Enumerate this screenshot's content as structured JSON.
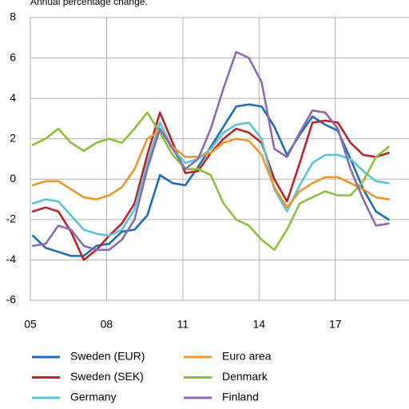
{
  "chart_data": {
    "type": "line",
    "title": "Annual percentage change.",
    "x": [
      2005.1,
      2005.6,
      2006.1,
      2006.6,
      2007.1,
      2007.6,
      2008.1,
      2008.6,
      2009.1,
      2009.6,
      2010.1,
      2010.6,
      2011.1,
      2011.6,
      2012.1,
      2012.6,
      2013.1,
      2013.6,
      2014.1,
      2014.6,
      2015.1,
      2015.6,
      2016.1,
      2016.6,
      2017.1,
      2017.6,
      2018.1,
      2018.6,
      2019.1
    ],
    "series": [
      {
        "name": "Sweden (EUR)",
        "color": "#1f6db5",
        "values": [
          -2.8,
          -3.4,
          -3.6,
          -3.8,
          -3.8,
          -3.3,
          -3.2,
          -2.6,
          -2.5,
          -1.8,
          0.2,
          -0.2,
          -0.3,
          0.6,
          1.6,
          2.6,
          3.6,
          3.7,
          3.6,
          2.6,
          1.2,
          2.2,
          3.1,
          2.7,
          2.4,
          1.0,
          -0.5,
          -1.6,
          -2.0
        ]
      },
      {
        "name": "Sweden (SEK)",
        "color": "#b8262d",
        "values": [
          -1.6,
          -1.4,
          -1.6,
          -2.6,
          -4.0,
          -3.5,
          -2.8,
          -2.2,
          -1.2,
          1.2,
          3.3,
          1.8,
          0.3,
          0.4,
          1.3,
          2.0,
          2.5,
          2.3,
          1.8,
          0.0,
          -1.1,
          0.8,
          2.8,
          2.9,
          2.8,
          1.8,
          1.2,
          1.1,
          1.3
        ]
      },
      {
        "name": "Germany",
        "color": "#5bc4d1",
        "values": [
          -1.2,
          -1.0,
          -1.1,
          -1.8,
          -2.5,
          -2.7,
          -2.8,
          -2.5,
          -1.5,
          0.8,
          2.8,
          1.5,
          0.8,
          1.0,
          1.5,
          2.3,
          2.7,
          2.8,
          2.0,
          -0.5,
          -1.6,
          -0.3,
          0.8,
          1.2,
          1.2,
          1.0,
          0.4,
          -0.1,
          -0.2
        ]
      },
      {
        "name": "Euro area",
        "color": "#f0952a",
        "values": [
          -0.3,
          -0.1,
          -0.1,
          -0.5,
          -0.9,
          -1.0,
          -0.8,
          -0.4,
          0.5,
          2.0,
          2.4,
          1.6,
          1.1,
          1.1,
          1.3,
          1.8,
          2.0,
          1.9,
          1.2,
          -0.4,
          -1.4,
          -0.6,
          -0.2,
          0.1,
          0.1,
          -0.2,
          -0.5,
          -0.9,
          -1.0
        ]
      },
      {
        "name": "Denmark",
        "color": "#8cbf3f",
        "values": [
          1.7,
          2.0,
          2.5,
          1.8,
          1.4,
          1.8,
          2.0,
          1.8,
          2.5,
          3.3,
          2.3,
          1.2,
          0.5,
          0.5,
          0.2,
          -1.2,
          -2.0,
          -2.3,
          -3.0,
          -3.5,
          -2.5,
          -1.2,
          -0.9,
          -0.6,
          -0.8,
          -0.8,
          -0.1,
          1.1,
          1.6
        ]
      },
      {
        "name": "Finland",
        "color": "#8b6bb0",
        "values": [
          -3.3,
          -3.2,
          -2.3,
          -2.5,
          -3.3,
          -3.5,
          -3.5,
          -3.0,
          -2.0,
          0.5,
          2.5,
          1.5,
          0.5,
          1.0,
          2.5,
          4.5,
          6.3,
          6.0,
          4.8,
          1.5,
          1.1,
          2.3,
          3.4,
          3.3,
          2.5,
          0.5,
          -1.0,
          -2.3,
          -2.2
        ]
      }
    ],
    "xlim": [
      2005,
      2019.9
    ],
    "xticks": [
      {
        "value": 2005,
        "label": "05"
      },
      {
        "value": 2008,
        "label": "08"
      },
      {
        "value": 2011,
        "label": "11"
      },
      {
        "value": 2014,
        "label": "14"
      },
      {
        "value": 2017,
        "label": "17"
      }
    ],
    "ylim": [
      -6,
      8
    ],
    "yticks": [
      -6,
      -4,
      -2,
      0,
      2,
      4,
      6,
      8
    ],
    "grid": true,
    "legend": "bottom"
  }
}
